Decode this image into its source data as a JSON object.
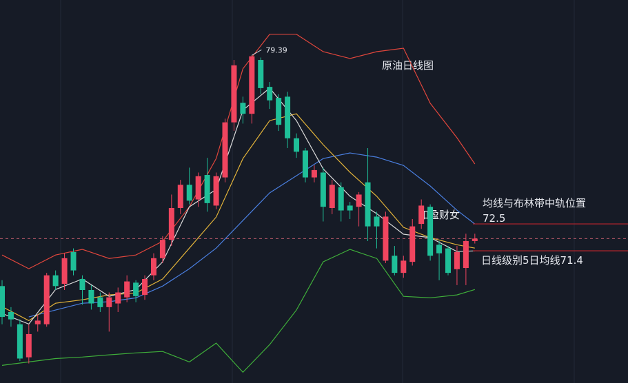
{
  "chart_data": {
    "type": "candlestick",
    "title": "原油日线图",
    "watermark": "如盈财女",
    "ylim": [
      66,
      81.65
    ],
    "up_color": "#f0455f",
    "down_color": "#1fbf98",
    "open": [
      69.96,
      68.9,
      68.4,
      67.05,
      68.4,
      68.4,
      70.4,
      70.05,
      71.35,
      70.25,
      69.8,
      69.5,
      69.1,
      69.25,
      69.5,
      70.1,
      69.6,
      70.4,
      71.1,
      71.85,
      73.15,
      74.1,
      73.5,
      74.5,
      73.25,
      74.4,
      76.65,
      77.45,
      77.0,
      79.2,
      78.1,
      77.65,
      77.7,
      76.0,
      75.5,
      74.4,
      74.6,
      73.15,
      74.0,
      73.25,
      73.2,
      74.2,
      72.8,
      71.0,
      71.2,
      70.5,
      70.95,
      72.5,
      73.2,
      71.65,
      71.5,
      70.65,
      70.7,
      71.8
    ],
    "high": [
      70.2,
      69.1,
      68.6,
      68.4,
      68.8,
      70.5,
      70.6,
      71.3,
      71.5,
      70.4,
      70.0,
      69.7,
      69.7,
      69.9,
      70.4,
      70.2,
      70.4,
      71.3,
      72.0,
      73.7,
      74.3,
      74.8,
      74.6,
      75.2,
      74.6,
      76.8,
      79.2,
      77.7,
      79.39,
      79.3,
      78.3,
      77.8,
      77.9,
      76.2,
      75.6,
      74.9,
      74.8,
      74.3,
      74.2,
      73.4,
      73.8,
      75.6,
      73.0,
      73.0,
      71.6,
      71.2,
      72.7,
      73.5,
      73.3,
      71.8,
      71.6,
      71.6,
      72.1,
      72.1
    ],
    "low": [
      68.4,
      68.3,
      66.9,
      66.8,
      68.1,
      68.3,
      69.8,
      69.8,
      70.4,
      69.2,
      69.0,
      68.9,
      68.1,
      68.9,
      69.3,
      69.3,
      69.4,
      70.2,
      70.9,
      71.6,
      72.9,
      73.3,
      73.2,
      73.0,
      73.1,
      74.2,
      76.3,
      76.6,
      76.6,
      77.8,
      77.2,
      76.3,
      75.6,
      75.2,
      74.2,
      74.2,
      72.6,
      72.9,
      72.6,
      72.7,
      72.4,
      71.8,
      71.5,
      70.9,
      70.4,
      70.3,
      70.8,
      72.3,
      71.0,
      70.2,
      70.4,
      70.0,
      70.0,
      71.7
    ],
    "close": [
      68.7,
      68.6,
      67.0,
      68.0,
      68.55,
      70.4,
      69.96,
      71.1,
      70.6,
      69.8,
      69.25,
      69.1,
      69.5,
      69.7,
      70.15,
      69.55,
      70.25,
      71.1,
      71.85,
      73.15,
      74.1,
      73.45,
      74.45,
      73.35,
      74.45,
      76.65,
      78.98,
      77.0,
      79.35,
      78.05,
      77.55,
      76.55,
      76.0,
      75.45,
      74.4,
      74.7,
      73.2,
      74.1,
      73.05,
      73.05,
      73.7,
      72.4,
      72.4,
      72.8,
      70.5,
      71.0,
      72.4,
      73.25,
      71.2,
      71.3,
      70.5,
      71.35,
      71.8,
      71.9
    ],
    "high_label_index": 28,
    "lines": [
      {
        "color": "#e0463c",
        "x": [
          0,
          3,
          6,
          9,
          12,
          15,
          18,
          21,
          24,
          27,
          30,
          33,
          36,
          39,
          42,
          45,
          48,
          51,
          53
        ],
        "values": [
          71.23,
          70.67,
          71.23,
          71.46,
          71.09,
          71.23,
          71.79,
          73.2,
          75.17,
          78.84,
          80.25,
          80.25,
          79.54,
          79.26,
          79.54,
          79.68,
          77.43,
          76.02,
          74.95
        ]
      },
      {
        "color": "#3fae3a",
        "x": [
          0,
          3,
          6,
          9,
          12,
          15,
          18,
          21,
          24,
          27,
          30,
          33,
          36,
          39,
          42,
          45,
          48,
          51,
          53
        ],
        "values": [
          66.72,
          66.86,
          67.0,
          67.06,
          67.15,
          67.23,
          67.29,
          66.86,
          67.63,
          66.44,
          67.57,
          68.98,
          70.95,
          71.46,
          71.09,
          69.54,
          69.48,
          69.6,
          69.82
        ]
      },
      {
        "color": "#4a7fe0",
        "x": [
          3,
          6,
          9,
          12,
          15,
          18,
          21,
          24,
          27,
          30,
          33,
          36,
          39,
          42,
          45,
          48,
          51,
          53
        ],
        "values": [
          68.7,
          68.98,
          69.26,
          69.32,
          69.48,
          69.96,
          70.67,
          71.51,
          72.64,
          73.77,
          74.47,
          75.17,
          75.4,
          75.23,
          74.89,
          74.05,
          73.06,
          72.5
        ]
      },
      {
        "color": "#e2b33a",
        "x": [
          0,
          3,
          6,
          9,
          12,
          15,
          18,
          21,
          24,
          27,
          30,
          33,
          36,
          39,
          42,
          45,
          48,
          51,
          53
        ],
        "values": [
          69.12,
          68.55,
          69.26,
          69.4,
          69.6,
          69.68,
          70.25,
          71.51,
          72.78,
          75.17,
          76.72,
          77.0,
          75.74,
          74.61,
          73.63,
          72.36,
          71.94,
          71.65,
          71.51
        ]
      },
      {
        "color": "#d8d8d8",
        "x": [
          0,
          3,
          6,
          9,
          12,
          15,
          18,
          21,
          24,
          27,
          30,
          33,
          36,
          39,
          42,
          45,
          48,
          51,
          53
        ],
        "values": [
          68.84,
          68.41,
          69.82,
          70.25,
          69.54,
          69.82,
          70.95,
          73.2,
          73.91,
          77.15,
          78.05,
          76.72,
          74.75,
          73.63,
          72.92,
          72.08,
          71.94,
          71.37,
          71.4
        ]
      }
    ],
    "price_line": 71.9,
    "levels": [
      {
        "label": "均线与布林带中轨位置",
        "value": 72.5
      },
      {
        "label": "日线级别5日均线71.4",
        "value": 71.4
      }
    ]
  }
}
